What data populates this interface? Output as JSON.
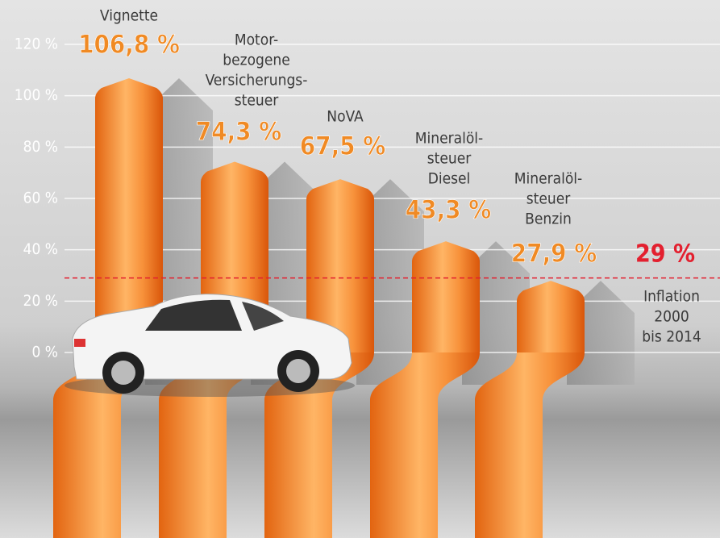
{
  "chart_data": {
    "type": "bar",
    "categories": [
      [
        "Vignette"
      ],
      [
        "Motor-",
        "bezogene",
        "Versicherungs-",
        "steuer"
      ],
      [
        "NoVA"
      ],
      [
        "Mineralöl-",
        "steuer",
        "Diesel"
      ],
      [
        "Mineralöl-",
        "steuer",
        "Benzin"
      ]
    ],
    "values": [
      106.8,
      74.3,
      67.5,
      43.3,
      27.9
    ],
    "value_labels": [
      "106,8 %",
      "74,3 %",
      "67,5 %",
      "43,3 %",
      "27,9 %"
    ],
    "color": "#f08a24",
    "ylim": [
      0,
      120
    ],
    "yticks": [
      {
        "value": 0,
        "label": "0 %"
      },
      {
        "value": 20,
        "label": "20 %"
      },
      {
        "value": 40,
        "label": "40 %"
      },
      {
        "value": 60,
        "label": "60 %"
      },
      {
        "value": 80,
        "label": "80 %"
      },
      {
        "value": 100,
        "label": "100 %"
      },
      {
        "value": 120,
        "label": "120 %"
      }
    ],
    "grid": true,
    "reference_line": {
      "value": 29,
      "label": "29 %",
      "annotation": [
        "Inflation",
        "2000",
        "bis 2014"
      ],
      "color": "#e3202f"
    }
  }
}
